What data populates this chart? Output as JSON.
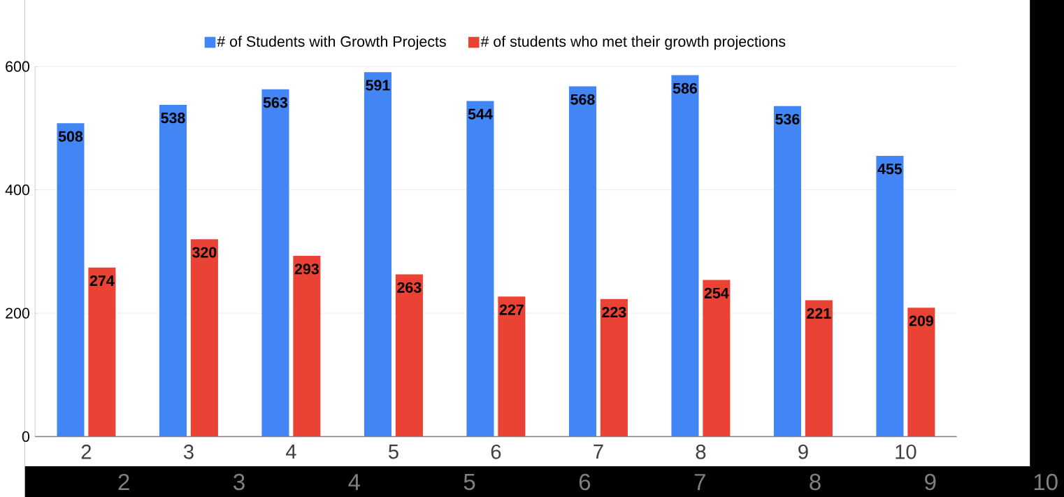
{
  "chart_data": {
    "type": "bar",
    "categories": [
      "2",
      "3",
      "4",
      "5",
      "6",
      "7",
      "8",
      "9",
      "10"
    ],
    "series": [
      {
        "name": "# of Students with Growth Projects",
        "color": "#4285f4",
        "values": [
          508,
          538,
          563,
          591,
          544,
          568,
          586,
          536,
          455
        ]
      },
      {
        "name": "# of students who met their growth projections",
        "color": "#ea4335",
        "values": [
          274,
          320,
          293,
          263,
          227,
          223,
          254,
          221,
          209
        ]
      }
    ],
    "ylim": [
      0,
      600
    ],
    "yticks": [
      0,
      200,
      400,
      600
    ],
    "grid": "y",
    "legend": "top",
    "data_labels": true,
    "annotations": [
      "2",
      "3",
      "4",
      "5",
      "6",
      "7",
      "8",
      "9",
      "10"
    ]
  }
}
